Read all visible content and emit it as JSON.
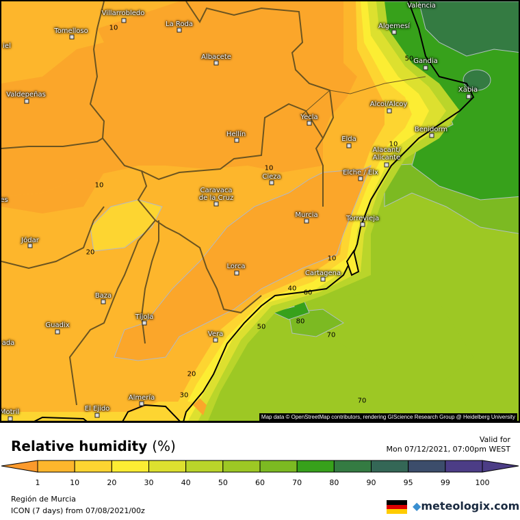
{
  "map": {
    "cities": [
      {
        "name": "Valencia"
      },
      {
        "name": "Villarrobledo"
      },
      {
        "name": "Tomelloso"
      },
      {
        "name": "La Roda"
      },
      {
        "name": "Albacete"
      },
      {
        "name": "iel"
      },
      {
        "name": "Valdepeñas"
      },
      {
        "name": "Hellín"
      },
      {
        "name": "Yecla"
      },
      {
        "name": "Alcoi/Alcoy"
      },
      {
        "name": "Algemesí"
      },
      {
        "name": "Gandia"
      },
      {
        "name": "Xàbia"
      },
      {
        "name": "Benidorm"
      },
      {
        "name": "Elda"
      },
      {
        "name": "Alacant/\nAlicante"
      },
      {
        "name": "Elche / Elx"
      },
      {
        "name": "Cieza"
      },
      {
        "name": "Caravaca\nde la Cruz"
      },
      {
        "name": "Murcia"
      },
      {
        "name": "Torrevieja"
      },
      {
        "name": "Jódar"
      },
      {
        "name": "Lorca"
      },
      {
        "name": "Cartagena"
      },
      {
        "name": "Baza"
      },
      {
        "name": "Guadix"
      },
      {
        "name": "Tíjola"
      },
      {
        "name": "Vera"
      },
      {
        "name": "ada"
      },
      {
        "name": "Almería"
      },
      {
        "name": "El Ejido"
      },
      {
        "name": "Motril"
      },
      {
        "name": "es"
      }
    ],
    "contour_labels": [
      "10",
      "10",
      "10",
      "10",
      "10",
      "20",
      "20",
      "30",
      "40",
      "50",
      "50",
      "60",
      "70",
      "70",
      "80"
    ],
    "attribution": "Map data © OpenStreetMap contributors, rendering GIScience Research Group @ Heidelberg University"
  },
  "header": {
    "title": "Relative humidity",
    "unit": "(%)",
    "valid_label": "Valid for",
    "valid_time": "Mon 07/12/2021, 07:00pm WEST"
  },
  "legend": {
    "ticks": [
      "1",
      "10",
      "20",
      "30",
      "40",
      "50",
      "60",
      "70",
      "80",
      "90",
      "95",
      "99",
      "100"
    ],
    "colors": [
      "#fb9a2c",
      "#fdb62c",
      "#fdd531",
      "#fced33",
      "#dde02f",
      "#bad52a",
      "#9dc824",
      "#7cba22",
      "#37a11b",
      "#347b42",
      "#346756",
      "#3c4d6b",
      "#4c3d86"
    ]
  },
  "footer": {
    "region": "Región de Murcia",
    "model": "ICON (7 days) from  07/08/2021/00z",
    "logo": "meteologix.com",
    "flag": "germany-flag"
  }
}
